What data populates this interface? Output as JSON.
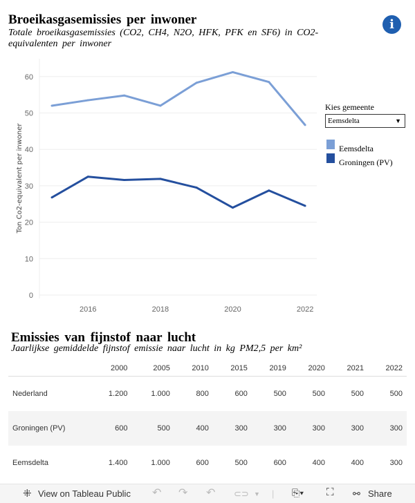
{
  "chart_data": {
    "type": "line",
    "title": "Broeikasgasemissies per inwoner",
    "subtitle": "Totale broeikasgasemissies (CO2, CH4, N2O, HFK, PFK en SF6) in CO2-equivalenten per inwoner",
    "ylabel": "Ton Co2-equivalent per inwoner",
    "xlabel": "",
    "x": [
      2015,
      2016,
      2017,
      2018,
      2019,
      2020,
      2021,
      2022
    ],
    "xticks": [
      "2016",
      "2018",
      "2020",
      "2022"
    ],
    "yticks": [
      "0",
      "10",
      "20",
      "30",
      "40",
      "50",
      "60"
    ],
    "ylim": [
      0,
      64
    ],
    "grid": true,
    "legend_placement": "right",
    "series": [
      {
        "name": "Eemsdelta",
        "color": "#7b9fd6",
        "values": [
          52.0,
          53.5,
          54.8,
          52.0,
          58.3,
          61.2,
          58.5,
          46.7
        ]
      },
      {
        "name": "Groningen (PV)",
        "color": "#244f9e",
        "values": [
          26.8,
          32.5,
          31.6,
          31.9,
          29.5,
          24.0,
          28.7,
          24.5
        ]
      }
    ]
  },
  "filter": {
    "label": "Kies gemeente",
    "value": "Eemsdelta"
  },
  "info_icon": "info-icon",
  "table": {
    "title": "Emissies van fijnstof naar lucht",
    "subtitle": "Jaarlijkse gemiddelde fijnstof emissie naar lucht in kg PM2,5 per km²",
    "columns": [
      "2000",
      "2005",
      "2010",
      "2015",
      "2019",
      "2020",
      "2021",
      "2022"
    ],
    "rows": [
      {
        "name": "Nederland",
        "values": [
          "1.200",
          "1.000",
          "800",
          "600",
          "500",
          "500",
          "500",
          "500"
        ]
      },
      {
        "name": "Groningen (PV)",
        "values": [
          "600",
          "500",
          "400",
          "300",
          "300",
          "300",
          "300",
          "300"
        ]
      },
      {
        "name": "Eemsdelta",
        "values": [
          "1.400",
          "1.000",
          "600",
          "500",
          "600",
          "400",
          "400",
          "300"
        ]
      }
    ]
  },
  "toolbar": {
    "view_label": "View on Tableau Public",
    "share_label": "Share"
  }
}
